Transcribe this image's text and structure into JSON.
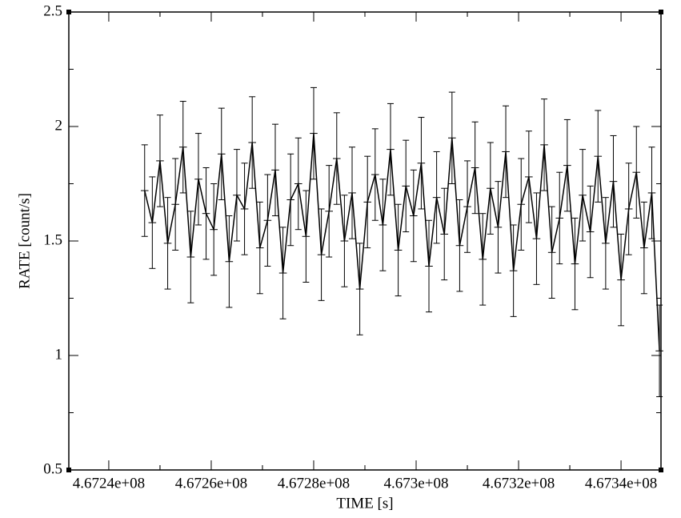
{
  "chart_data": {
    "type": "errorline",
    "xlabel": "TIME [s]",
    "ylabel": "RATE [count/s]",
    "xlim": [
      467232200,
      467347800
    ],
    "ylim": [
      0.5,
      2.5
    ],
    "xticks": [
      {
        "value": 467240000,
        "label": "4.6724e+08"
      },
      {
        "value": 467260000,
        "label": "4.6726e+08"
      },
      {
        "value": 467280000,
        "label": "4.6728e+08"
      },
      {
        "value": 467300000,
        "label": "4.673e+08"
      },
      {
        "value": 467320000,
        "label": "4.6732e+08"
      },
      {
        "value": 467340000,
        "label": "4.6734e+08"
      }
    ],
    "yticks": [
      0.5,
      1,
      1.5,
      2,
      2.5
    ],
    "series": [
      {
        "color": "#000000",
        "xerr": 750,
        "yerr": 0.2,
        "x": [
          467247000,
          467248500,
          467250000,
          467251500,
          467253000,
          467254500,
          467256000,
          467257500,
          467259000,
          467260500,
          467262000,
          467263500,
          467265000,
          467266500,
          467268000,
          467269500,
          467271000,
          467272500,
          467274000,
          467275500,
          467277000,
          467278500,
          467280000,
          467281500,
          467283000,
          467284500,
          467286000,
          467287500,
          467289000,
          467290500,
          467292000,
          467293500,
          467295000,
          467296500,
          467298000,
          467299500,
          467301000,
          467302500,
          467304000,
          467305500,
          467307000,
          467308500,
          467310000,
          467311500,
          467313000,
          467314500,
          467316000,
          467317500,
          467319000,
          467320500,
          467322000,
          467323500,
          467325000,
          467326500,
          467328000,
          467329500,
          467331000,
          467332500,
          467334000,
          467335500,
          467337000,
          467338500,
          467340000,
          467341500,
          467343000,
          467344500,
          467346000,
          467347500
        ],
        "values": [
          1.72,
          1.58,
          1.85,
          1.49,
          1.66,
          1.91,
          1.43,
          1.77,
          1.62,
          1.55,
          1.88,
          1.41,
          1.7,
          1.64,
          1.93,
          1.47,
          1.59,
          1.81,
          1.36,
          1.68,
          1.75,
          1.52,
          1.97,
          1.44,
          1.63,
          1.86,
          1.5,
          1.71,
          1.29,
          1.67,
          1.79,
          1.57,
          1.9,
          1.46,
          1.74,
          1.61,
          1.84,
          1.39,
          1.69,
          1.53,
          1.95,
          1.48,
          1.65,
          1.82,
          1.42,
          1.73,
          1.56,
          1.89,
          1.37,
          1.66,
          1.78,
          1.51,
          1.92,
          1.45,
          1.6,
          1.83,
          1.4,
          1.7,
          1.54,
          1.87,
          1.49,
          1.76,
          1.33,
          1.64,
          1.8,
          1.47,
          1.71,
          1.02
        ]
      }
    ]
  }
}
